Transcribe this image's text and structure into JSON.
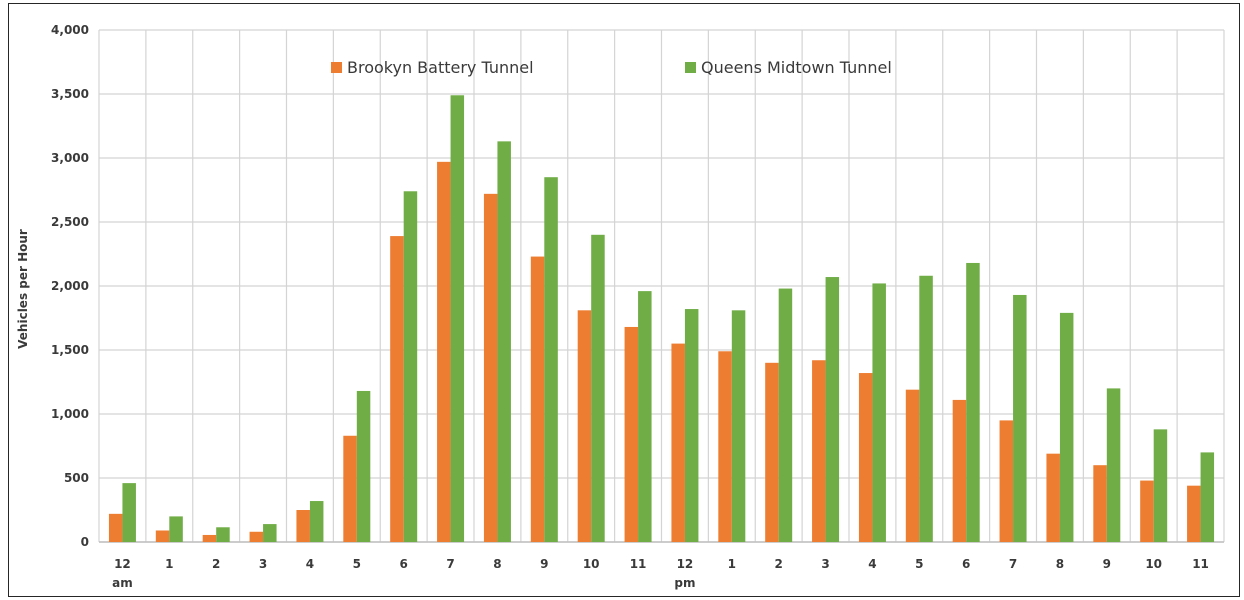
{
  "chart_data": {
    "type": "bar",
    "ylabel": "Vehicles per Hour",
    "ylim": [
      0,
      4000
    ],
    "y_ticks": [
      "0",
      "500",
      "1,000",
      "1,500",
      "2,000",
      "2,500",
      "3,000",
      "3,500",
      "4,000"
    ],
    "grid": true,
    "legend_position": "top-center",
    "categories": [
      "12",
      "1",
      "2",
      "3",
      "4",
      "5",
      "6",
      "7",
      "8",
      "9",
      "10",
      "11",
      "12",
      "1",
      "2",
      "3",
      "4",
      "5",
      "6",
      "7",
      "8",
      "9",
      "10",
      "11"
    ],
    "category_sublabels": [
      "am",
      "",
      "",
      "",
      "",
      "",
      "",
      "",
      "",
      "",
      "",
      "",
      "pm",
      "",
      "",
      "",
      "",
      "",
      "",
      "",
      "",
      "",
      "",
      ""
    ],
    "series": [
      {
        "name": "Brookyn Battery Tunnel",
        "color": "#ED7D31",
        "values": [
          220,
          90,
          55,
          80,
          250,
          830,
          2390,
          2970,
          2720,
          2230,
          1810,
          1680,
          1550,
          1490,
          1400,
          1420,
          1320,
          1190,
          1110,
          950,
          690,
          600,
          480,
          440
        ]
      },
      {
        "name": "Queens Midtown Tunnel",
        "color": "#70AD47",
        "values": [
          460,
          200,
          115,
          140,
          320,
          1180,
          2740,
          3490,
          3130,
          2850,
          2400,
          1960,
          1820,
          1810,
          1980,
          2070,
          2020,
          2080,
          2180,
          1930,
          1790,
          1200,
          880,
          700
        ]
      }
    ]
  }
}
